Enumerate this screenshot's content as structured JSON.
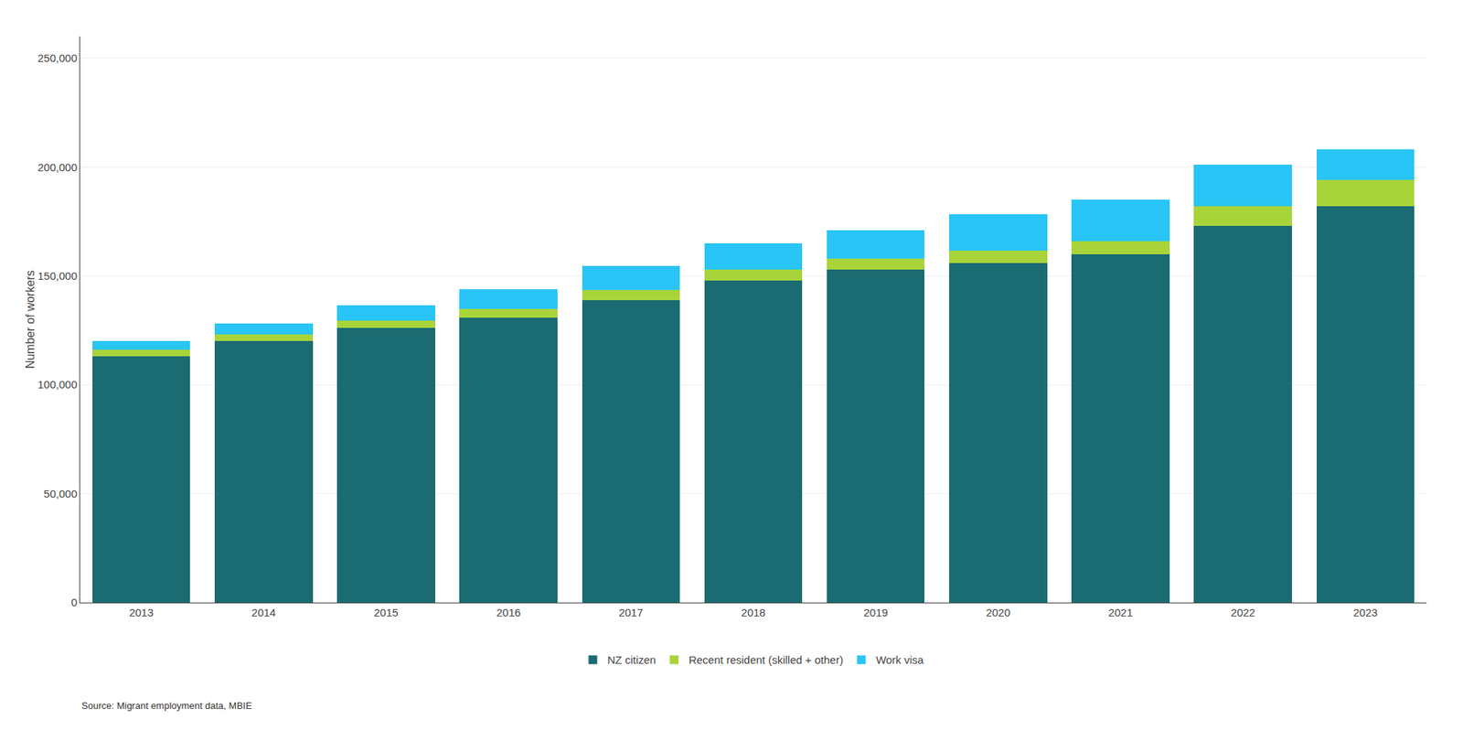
{
  "chart_data": {
    "type": "bar",
    "stacked": true,
    "categories": [
      "2013",
      "2014",
      "2015",
      "2016",
      "2017",
      "2018",
      "2019",
      "2020",
      "2021",
      "2022",
      "2023"
    ],
    "series": [
      {
        "name": "NZ citizen",
        "color": "#1a6b72",
        "values": [
          113000,
          120000,
          126000,
          131000,
          139000,
          148000,
          153000,
          156000,
          160000,
          173000,
          182000
        ]
      },
      {
        "name": "Recent resident (skilled + other)",
        "color": "#a8d43a",
        "values": [
          3000,
          3000,
          3500,
          4000,
          4500,
          5000,
          5000,
          5500,
          6000,
          9000,
          12000
        ]
      },
      {
        "name": "Work visa",
        "color": "#29c5f6",
        "values": [
          4000,
          5000,
          7000,
          9000,
          11000,
          12000,
          13000,
          17000,
          19000,
          19000,
          14000
        ]
      }
    ],
    "ylabel": "Number of workers",
    "ylim": [
      0,
      260000
    ],
    "yticks": [
      0,
      {
        "value": 50000,
        "label": "50,000"
      },
      {
        "value": 100000,
        "label": "100,000"
      },
      {
        "value": 150000,
        "label": "150,000"
      },
      {
        "value": 200000,
        "label": "200,000"
      },
      {
        "value": 250000,
        "label": "250,000"
      }
    ],
    "grid": true,
    "legend": "bottom",
    "annotations": [
      "Source: Migrant employment data, MBIE"
    ]
  }
}
